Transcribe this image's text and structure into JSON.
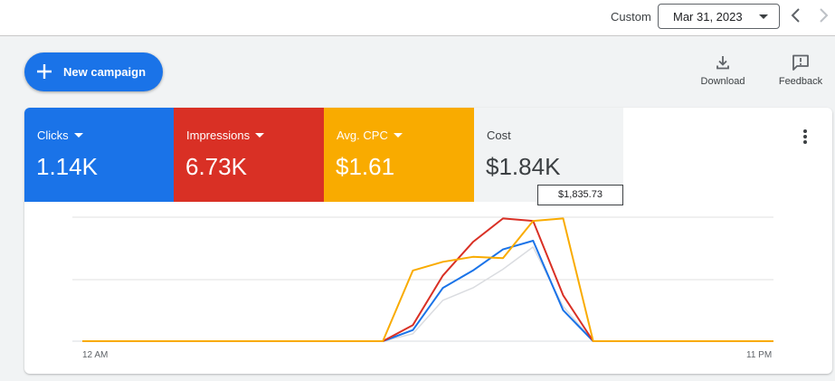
{
  "header": {
    "range_label": "Custom",
    "date_value": "Mar 31, 2023"
  },
  "actions": {
    "new_campaign": "New campaign",
    "download": "Download",
    "feedback": "Feedback"
  },
  "metrics": [
    {
      "name": "Clicks",
      "value": "1.14K",
      "color": "#1a73e8"
    },
    {
      "name": "Impressions",
      "value": "6.73K",
      "color": "#d93025"
    },
    {
      "name": "Avg. CPC",
      "value": "$1.61",
      "color": "#f9ab00"
    },
    {
      "name": "Cost",
      "value": "$1.84K",
      "color": "#f1f3f4"
    }
  ],
  "tooltip": "$1,835.73",
  "icons": {
    "add": "plus-icon",
    "download": "download-icon",
    "feedback": "feedback-icon",
    "more": "more-vert-icon",
    "prev": "chevron-left-icon",
    "next": "chevron-right-icon",
    "dropdown": "caret-down-icon"
  },
  "chart_data": {
    "type": "line",
    "x": [
      0,
      1,
      2,
      3,
      4,
      5,
      6,
      7,
      8,
      9,
      10,
      11,
      12,
      13,
      14,
      15,
      16,
      17,
      18,
      19,
      20,
      21,
      22,
      23
    ],
    "xtick_labels": [
      "12 AM",
      "11 PM"
    ],
    "ylim": [
      0,
      1
    ],
    "grid": true,
    "series": [
      {
        "color": "#dadce0",
        "values": [
          0,
          0,
          0,
          0,
          0,
          0,
          0,
          0,
          0,
          0,
          0,
          0.06,
          0.33,
          0.43,
          0.58,
          0.76,
          0.28,
          0,
          0,
          0,
          0,
          0,
          0,
          0
        ]
      },
      {
        "color": "#1a73e8",
        "values": [
          0,
          0,
          0,
          0,
          0,
          0,
          0,
          0,
          0,
          0,
          0,
          0.09,
          0.43,
          0.57,
          0.74,
          0.81,
          0.25,
          0,
          0,
          0,
          0,
          0,
          0,
          0
        ]
      },
      {
        "color": "#d93025",
        "values": [
          0,
          0,
          0,
          0,
          0,
          0,
          0,
          0,
          0,
          0,
          0,
          0.13,
          0.53,
          0.8,
          0.99,
          0.97,
          0.37,
          0,
          0,
          0,
          0,
          0,
          0,
          0
        ]
      },
      {
        "color": "#f9ab00",
        "values": [
          0,
          0,
          0,
          0,
          0,
          0,
          0,
          0,
          0,
          0,
          0,
          0.57,
          0.64,
          0.68,
          0.67,
          0.97,
          0.99,
          0,
          0,
          0,
          0,
          0,
          0,
          0
        ]
      }
    ]
  }
}
